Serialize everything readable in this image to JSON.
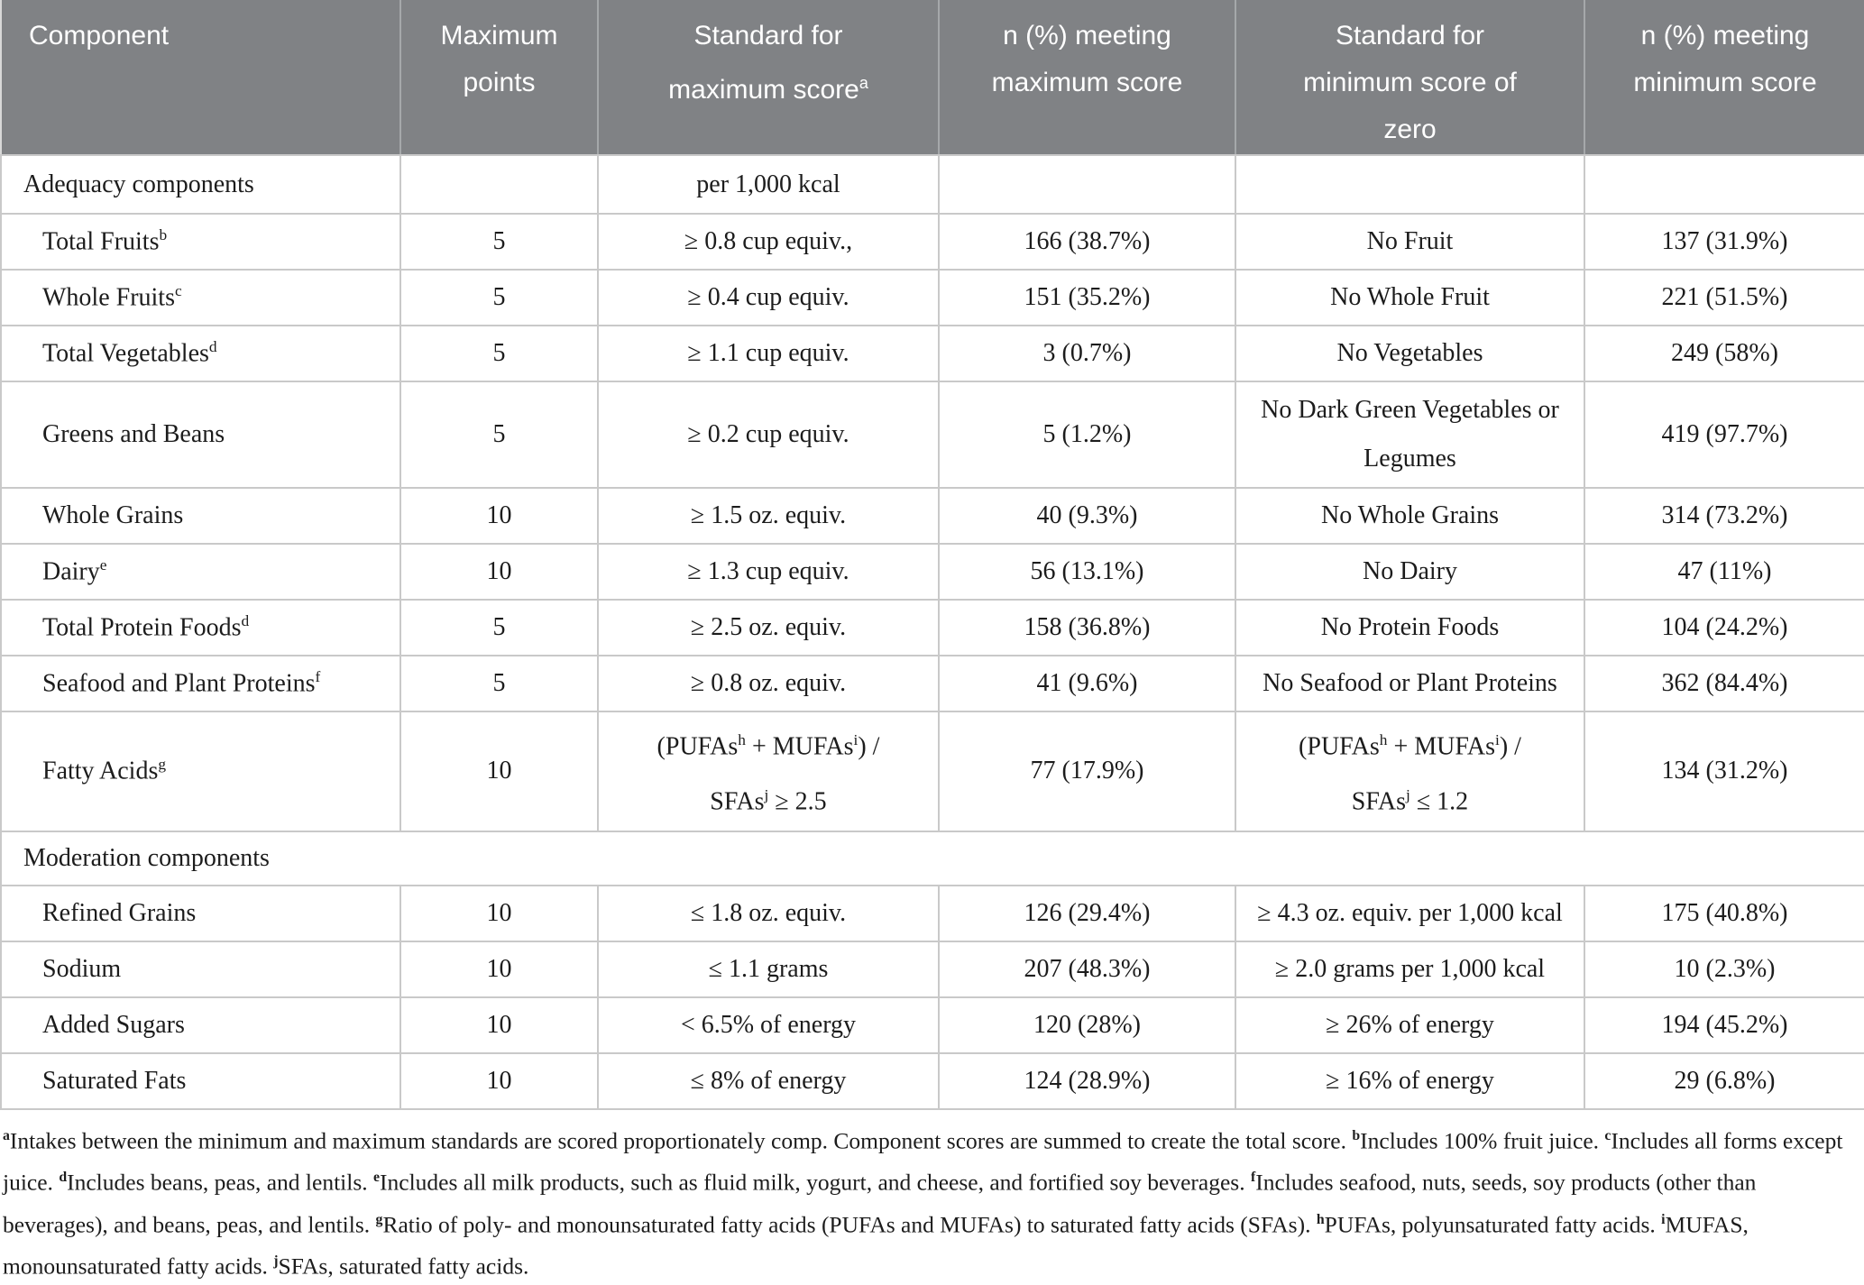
{
  "table": {
    "header": {
      "component": "Component",
      "max_points": "Maximum\npoints",
      "std_max": "Standard for\nmaximum score^a^",
      "n_max": "n (%) meeting\nmaximum score",
      "std_min": "Standard for\nminimum score of\nzero",
      "n_min": "n (%) meeting\nminimum score"
    },
    "adequacy_section": {
      "label": "Adequacy components",
      "std_max": "per 1,000 kcal"
    },
    "adequacy_rows": [
      {
        "component": "Total Fruits^b^",
        "max_points": "5",
        "std_max": "≥ 0.8 cup equiv.,",
        "n_max": "166 (38.7%)",
        "std_min": "No Fruit",
        "n_min": "137 (31.9%)"
      },
      {
        "component": "Whole Fruits^c^",
        "max_points": "5",
        "std_max": "≥ 0.4 cup equiv.",
        "n_max": "151 (35.2%)",
        "std_min": "No Whole Fruit",
        "n_min": "221 (51.5%)"
      },
      {
        "component": "Total Vegetables^d^",
        "max_points": "5",
        "std_max": "≥ 1.1 cup equiv.",
        "n_max": "3 (0.7%)",
        "std_min": "No Vegetables",
        "n_min": "249 (58%)"
      },
      {
        "component": "Greens and Beans",
        "max_points": "5",
        "std_max": "≥ 0.2 cup equiv.",
        "n_max": "5 (1.2%)",
        "std_min": "No Dark Green Vegetables or\nLegumes",
        "n_min": "419 (97.7%)"
      },
      {
        "component": "Whole Grains",
        "max_points": "10",
        "std_max": "≥ 1.5 oz. equiv.",
        "n_max": "40 (9.3%)",
        "std_min": "No Whole Grains",
        "n_min": "314 (73.2%)"
      },
      {
        "component": "Dairy^e^",
        "max_points": "10",
        "std_max": "≥ 1.3 cup equiv.",
        "n_max": "56 (13.1%)",
        "std_min": "No Dairy",
        "n_min": "47 (11%)"
      },
      {
        "component": "Total Protein Foods^d^",
        "max_points": "5",
        "std_max": "≥ 2.5 oz. equiv.",
        "n_max": "158 (36.8%)",
        "std_min": "No Protein Foods",
        "n_min": "104 (24.2%)"
      },
      {
        "component": "Seafood and Plant Proteins^f^",
        "max_points": "5",
        "std_max": "≥ 0.8 oz. equiv.",
        "n_max": "41 (9.6%)",
        "std_min": "No Seafood or Plant Proteins",
        "n_min": "362 (84.4%)"
      },
      {
        "component": "Fatty Acids^g^",
        "max_points": "10",
        "std_max": "(PUFAs^h^ + MUFAs^i^) /\nSFAs^j^ ≥ 2.5",
        "n_max": "77 (17.9%)",
        "std_min": "(PUFAs^h^ + MUFAs^i^) /\nSFAs^j^ ≤ 1.2",
        "n_min": "134 (31.2%)"
      }
    ],
    "moderation_section": {
      "label": "Moderation components"
    },
    "moderation_rows": [
      {
        "component": "Refined Grains",
        "max_points": "10",
        "std_max": "≤ 1.8 oz. equiv.",
        "n_max": "126 (29.4%)",
        "std_min": "≥ 4.3 oz. equiv. per 1,000 kcal",
        "n_min": "175 (40.8%)"
      },
      {
        "component": "Sodium",
        "max_points": "10",
        "std_max": "≤ 1.1 grams",
        "n_max": "207 (48.3%)",
        "std_min": "≥ 2.0 grams per 1,000 kcal",
        "n_min": "10 (2.3%)"
      },
      {
        "component": "Added Sugars",
        "max_points": "10",
        "std_max": "< 6.5% of energy",
        "n_max": "120 (28%)",
        "std_min": "≥ 26% of energy",
        "n_min": "194 (45.2%)"
      },
      {
        "component": "Saturated Fats",
        "max_points": "10",
        "std_max": "≤ 8% of energy",
        "n_max": "124 (28.9%)",
        "std_min": "≥ 16% of energy",
        "n_min": "29 (6.8%)"
      }
    ]
  },
  "footnote": "^a^Intakes between the minimum and maximum standards are scored proportionately comp. Component scores are summed to create the total score. ^b^Includes 100% fruit juice. ^c^Includes all forms except juice. ^d^Includes beans, peas, and lentils. ^e^Includes all milk products, such as fluid milk, yogurt, and cheese, and fortified soy beverages. ^f^Includes seafood, nuts, seeds, soy products (other than beverages), and beans, peas, and lentils. ^g^Ratio of poly- and monounsaturated fatty acids (PUFAs and MUFAs) to saturated fatty acids (SFAs). ^h^PUFAs, polyunsaturated fatty acids. ^i^MUFAS, monounsaturated fatty acids. ^j^SFAs, saturated fatty acids.",
  "colors": {
    "header_bg": "#808285",
    "header_text": "#ffffff",
    "body_text": "#1c1c1c",
    "grid_line": "#c9c9c9"
  }
}
